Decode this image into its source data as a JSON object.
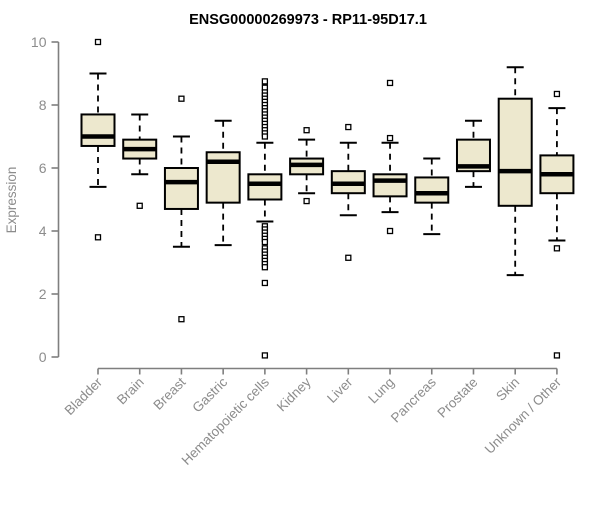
{
  "page": {
    "background": "#FFFFFF"
  },
  "chart_data": {
    "type": "boxplot",
    "title": "ENSG00000269973 - RP11-95D17.1",
    "ylabel": "Expression",
    "xlabel": "",
    "ylim": [
      0,
      10
    ],
    "yticks": [
      0,
      2,
      4,
      6,
      8,
      10
    ],
    "grid": false,
    "legend": false,
    "colors": {
      "box_fill": "#EDE8CE",
      "box_border": "#000000",
      "median": "#000000",
      "whisker": "#000000",
      "axis": "#7F7F7F",
      "tick_label": "#8C8C8C",
      "title": "#000000",
      "outlier_fill": "#FFFFFF"
    },
    "categories": [
      "Bladder",
      "Brain",
      "Breast",
      "Gastric",
      "Hematopoietic cells",
      "Kidney",
      "Liver",
      "Lung",
      "Pancreas",
      "Prostate",
      "Skin",
      "Unknown / Other"
    ],
    "boxes": [
      {
        "category": "Bladder",
        "whisker_low": 5.4,
        "q1": 6.7,
        "median": 7.0,
        "q3": 7.7,
        "whisker_high": 9.0,
        "outliers": [
          10.0,
          3.8
        ]
      },
      {
        "category": "Brain",
        "whisker_low": 5.8,
        "q1": 6.3,
        "median": 6.6,
        "q3": 6.9,
        "whisker_high": 7.7,
        "outliers": [
          4.8
        ]
      },
      {
        "category": "Breast",
        "whisker_low": 3.5,
        "q1": 4.7,
        "median": 5.55,
        "q3": 6.0,
        "whisker_high": 7.0,
        "outliers": [
          8.2,
          1.2
        ]
      },
      {
        "category": "Gastric",
        "whisker_low": 3.55,
        "q1": 4.9,
        "median": 6.2,
        "q3": 6.5,
        "whisker_high": 7.5,
        "outliers": []
      },
      {
        "category": "Hematopoietic cells",
        "whisker_low": 4.3,
        "q1": 5.0,
        "median": 5.5,
        "q3": 5.8,
        "whisker_high": 6.8,
        "outliers": [
          8.75,
          8.55,
          8.4,
          8.3,
          8.2,
          8.1,
          8.0,
          7.9,
          7.8,
          7.7,
          7.6,
          7.5,
          7.4,
          7.3,
          7.2,
          7.1,
          7.0,
          4.15,
          4.05,
          3.95,
          3.85,
          3.75,
          3.65,
          3.45,
          3.35,
          3.25,
          3.15,
          3.05,
          2.95,
          2.85,
          2.35,
          0.05
        ]
      },
      {
        "category": "Kidney",
        "whisker_low": 5.2,
        "q1": 5.8,
        "median": 6.1,
        "q3": 6.3,
        "whisker_high": 6.9,
        "outliers": [
          7.2,
          4.95
        ]
      },
      {
        "category": "Liver",
        "whisker_low": 4.5,
        "q1": 5.2,
        "median": 5.5,
        "q3": 5.9,
        "whisker_high": 6.8,
        "outliers": [
          7.3,
          3.15
        ]
      },
      {
        "category": "Lung",
        "whisker_low": 4.6,
        "q1": 5.1,
        "median": 5.6,
        "q3": 5.8,
        "whisker_high": 6.8,
        "outliers": [
          8.7,
          6.95,
          4.0
        ]
      },
      {
        "category": "Pancreas",
        "whisker_low": 3.9,
        "q1": 4.9,
        "median": 5.2,
        "q3": 5.7,
        "whisker_high": 6.3,
        "outliers": []
      },
      {
        "category": "Prostate",
        "whisker_low": 5.4,
        "q1": 5.9,
        "median": 6.05,
        "q3": 6.9,
        "whisker_high": 7.5,
        "outliers": []
      },
      {
        "category": "Skin",
        "whisker_low": 2.6,
        "q1": 4.8,
        "median": 5.9,
        "q3": 8.2,
        "whisker_high": 9.2,
        "outliers": []
      },
      {
        "category": "Unknown / Other",
        "whisker_low": 3.7,
        "q1": 5.2,
        "median": 5.8,
        "q3": 6.4,
        "whisker_high": 7.9,
        "outliers": [
          8.35,
          3.45,
          0.05
        ]
      }
    ]
  }
}
